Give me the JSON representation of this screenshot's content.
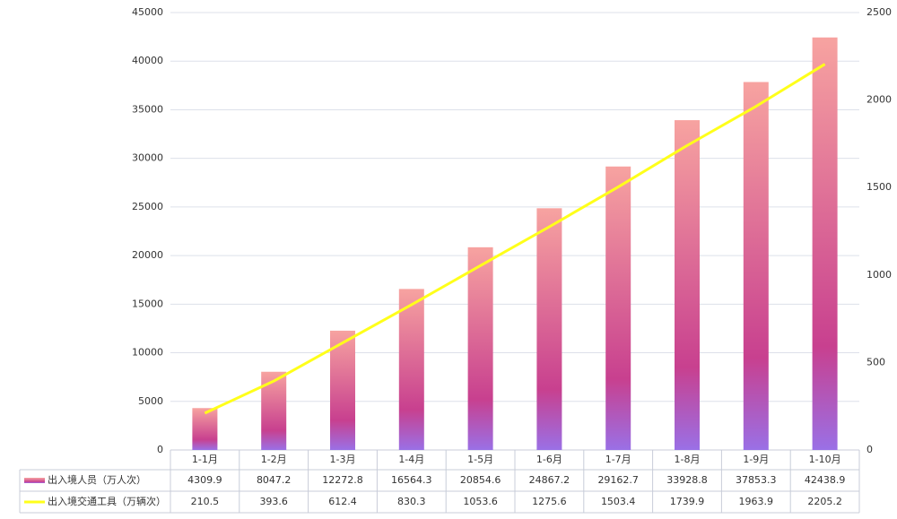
{
  "chart_data": {
    "type": "bar",
    "categories": [
      "1-1月",
      "1-2月",
      "1-3月",
      "1-4月",
      "1-5月",
      "1-6月",
      "1-7月",
      "1-8月",
      "1-9月",
      "1-10月"
    ],
    "series": [
      {
        "name": "出入境人员（万人次）",
        "type": "bar",
        "color": "#c8408f",
        "values": [
          4309.9,
          8047.2,
          12272.8,
          16564.3,
          20854.6,
          24867.2,
          29162.7,
          33928.8,
          37853.3,
          42438.9
        ]
      },
      {
        "name": "出入境交通工具（万辆次）",
        "type": "line",
        "axis": "y2",
        "color": "#ffff1a",
        "values": [
          210.5,
          393.6,
          612.4,
          830.3,
          1053.6,
          1275.6,
          1503.4,
          1739.9,
          1963.9,
          2205.2
        ]
      }
    ],
    "ylim": [
      0,
      45000
    ],
    "yticks": [
      0,
      5000,
      10000,
      15000,
      20000,
      25000,
      30000,
      35000,
      40000,
      45000
    ],
    "y2lim": [
      0,
      2500
    ],
    "y2ticks": [
      0,
      500,
      1000,
      1500,
      2000,
      2500
    ],
    "grid": true
  }
}
